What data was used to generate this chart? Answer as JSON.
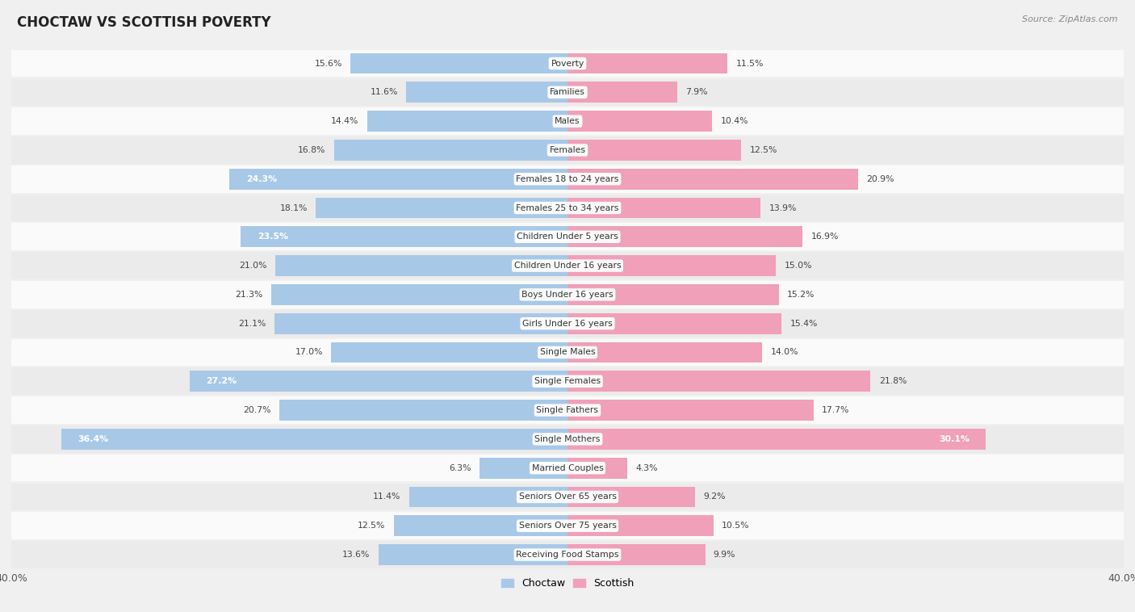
{
  "title": "CHOCTAW VS SCOTTISH POVERTY",
  "source": "Source: ZipAtlas.com",
  "categories": [
    "Poverty",
    "Families",
    "Males",
    "Females",
    "Females 18 to 24 years",
    "Females 25 to 34 years",
    "Children Under 5 years",
    "Children Under 16 years",
    "Boys Under 16 years",
    "Girls Under 16 years",
    "Single Males",
    "Single Females",
    "Single Fathers",
    "Single Mothers",
    "Married Couples",
    "Seniors Over 65 years",
    "Seniors Over 75 years",
    "Receiving Food Stamps"
  ],
  "choctaw": [
    15.6,
    11.6,
    14.4,
    16.8,
    24.3,
    18.1,
    23.5,
    21.0,
    21.3,
    21.1,
    17.0,
    27.2,
    20.7,
    36.4,
    6.3,
    11.4,
    12.5,
    13.6
  ],
  "scottish": [
    11.5,
    7.9,
    10.4,
    12.5,
    20.9,
    13.9,
    16.9,
    15.0,
    15.2,
    15.4,
    14.0,
    21.8,
    17.7,
    30.1,
    4.3,
    9.2,
    10.5,
    9.9
  ],
  "choctaw_color": "#a8c8e8",
  "scottish_color": "#f0a0b8",
  "background_color": "#f0f0f0",
  "row_color_light": "#fafafa",
  "row_color_dark": "#ebebeb",
  "xlim": 40.0,
  "legend_labels": [
    "Choctaw",
    "Scottish"
  ],
  "inside_label_threshold": 22.0
}
